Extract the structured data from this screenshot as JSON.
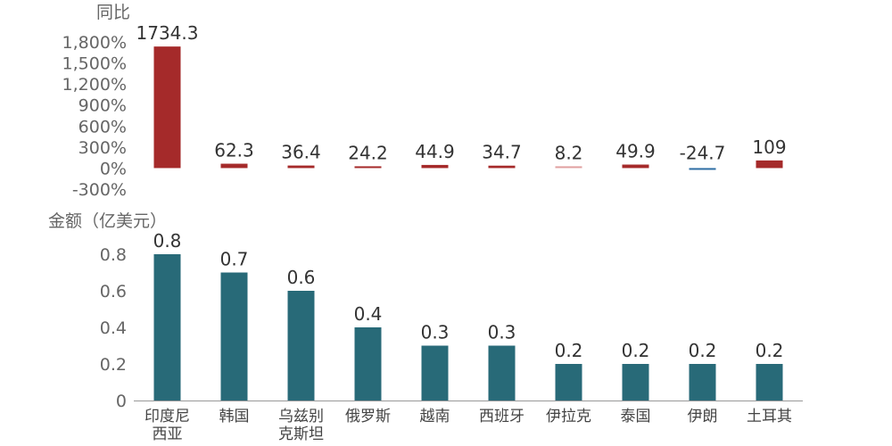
{
  "chart_data": [
    {
      "type": "bar",
      "ylabel": "同比",
      "ylim": [
        -300,
        1800
      ],
      "ytick_labels": [
        "1,800%",
        "1,500%",
        "1,200%",
        "900%",
        "600%",
        "300%",
        "0%",
        "-300%"
      ],
      "ytick_values": [
        1800,
        1500,
        1200,
        900,
        600,
        300,
        0,
        -300
      ],
      "categories": [
        "印度尼西亚",
        "韩国",
        "乌兹别克斯坦",
        "俄罗斯",
        "越南",
        "西班牙",
        "伊拉克",
        "泰国",
        "伊朗",
        "土耳其"
      ],
      "values": [
        1734.3,
        62.3,
        36.4,
        24.2,
        44.9,
        34.7,
        8.2,
        49.9,
        -24.7,
        109
      ],
      "labels": [
        "1734.3",
        "62.3",
        "36.4",
        "24.2",
        "44.9",
        "34.7",
        "8.2",
        "49.9",
        "-24.7",
        "109"
      ],
      "colors": {
        "positive": "#a52a2a",
        "negative": "#2e6da4",
        "small_positive": "#e0a0a0"
      }
    },
    {
      "type": "bar",
      "ylabel": "金额（亿美元）",
      "ylim": [
        0,
        0.8
      ],
      "ytick_labels": [
        "0.8",
        "0.6",
        "0.4",
        "0.2",
        "0"
      ],
      "ytick_values": [
        0.8,
        0.6,
        0.4,
        0.2,
        0
      ],
      "categories": [
        "印度尼西亚",
        "韩国",
        "乌兹别克斯坦",
        "俄罗斯",
        "越南",
        "西班牙",
        "伊拉克",
        "泰国",
        "伊朗",
        "土耳其"
      ],
      "category_labels": [
        [
          "印度尼",
          "西亚"
        ],
        [
          "韩国"
        ],
        [
          "乌兹别",
          "克斯坦"
        ],
        [
          "俄罗斯"
        ],
        [
          "越南"
        ],
        [
          "西班牙"
        ],
        [
          "伊拉克"
        ],
        [
          "泰国"
        ],
        [
          "伊朗"
        ],
        [
          "土耳其"
        ]
      ],
      "values": [
        0.8,
        0.7,
        0.6,
        0.4,
        0.3,
        0.3,
        0.2,
        0.2,
        0.2,
        0.2
      ],
      "labels": [
        "0.8",
        "0.7",
        "0.6",
        "0.4",
        "0.3",
        "0.3",
        "0.2",
        "0.2",
        "0.2",
        "0.2"
      ],
      "color": "#286a78"
    }
  ]
}
